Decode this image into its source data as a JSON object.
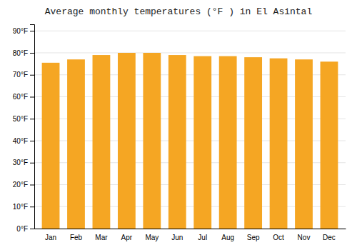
{
  "chart_data": {
    "type": "bar",
    "title": "Average monthly temperatures (°F ) in El Asintal",
    "categories": [
      "Jan",
      "Feb",
      "Mar",
      "Apr",
      "May",
      "Jun",
      "Jul",
      "Aug",
      "Sep",
      "Oct",
      "Nov",
      "Dec"
    ],
    "values": [
      75.5,
      77.0,
      79.0,
      80.0,
      80.0,
      79.0,
      78.5,
      78.5,
      78.0,
      77.5,
      77.0,
      76.0
    ],
    "color": "#F5A623",
    "ylim": [
      0,
      93
    ],
    "yticks": [
      {
        "value": 0,
        "label": "0°F"
      },
      {
        "value": 10,
        "label": "10°F"
      },
      {
        "value": 20,
        "label": "20°F"
      },
      {
        "value": 30,
        "label": "30°F"
      },
      {
        "value": 40,
        "label": "40°F"
      },
      {
        "value": 50,
        "label": "50°F"
      },
      {
        "value": 60,
        "label": "60°F"
      },
      {
        "value": 70,
        "label": "70°F"
      },
      {
        "value": 80,
        "label": "80°F"
      },
      {
        "value": 90,
        "label": "90°F"
      }
    ],
    "grid": true
  }
}
